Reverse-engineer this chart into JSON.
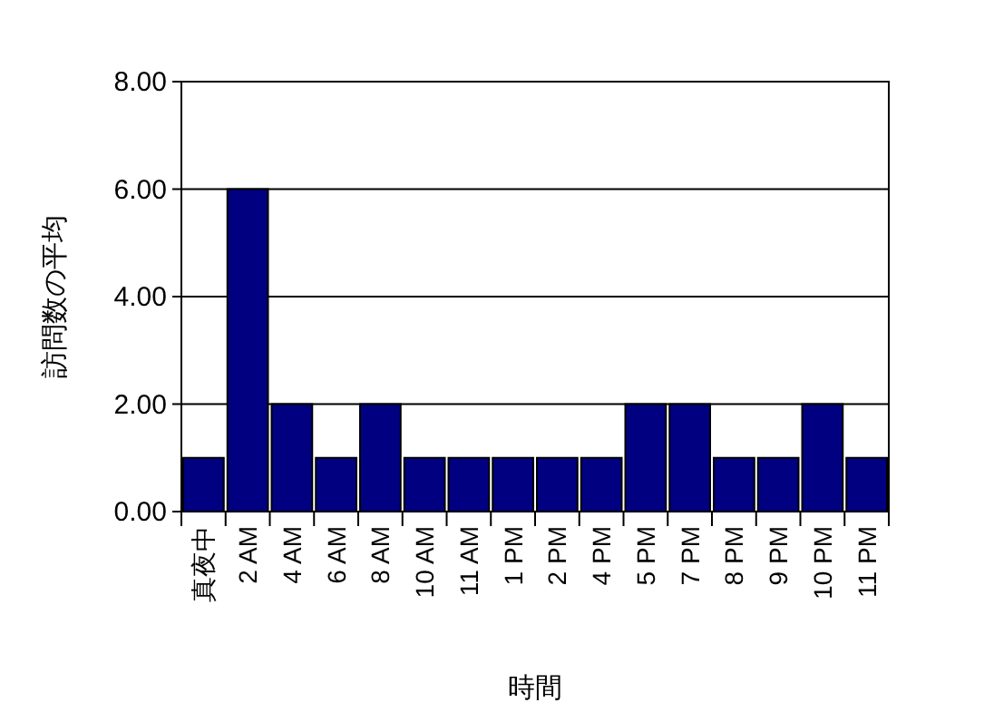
{
  "chart_data": {
    "type": "bar",
    "xlabel": "時間",
    "ylabel": "訪問数の平均",
    "categories": [
      "真夜中",
      "2 AM",
      "4 AM",
      "6 AM",
      "8 AM",
      "10 AM",
      "11 AM",
      "1 PM",
      "2 PM",
      "4 PM",
      "5 PM",
      "7 PM",
      "8 PM",
      "9 PM",
      "10 PM",
      "11 PM"
    ],
    "values": [
      1,
      6,
      2,
      1,
      2,
      1,
      1,
      1,
      1,
      1,
      2,
      2,
      1,
      1,
      2,
      1
    ],
    "color": "#000080",
    "ylim": [
      0,
      8
    ],
    "yticks": [
      {
        "value": 0,
        "label": "0.00"
      },
      {
        "value": 2,
        "label": "2.00"
      },
      {
        "value": 4,
        "label": "4.00"
      },
      {
        "value": 6,
        "label": "6.00"
      },
      {
        "value": 8,
        "label": "8.00"
      }
    ],
    "grid": "y"
  }
}
